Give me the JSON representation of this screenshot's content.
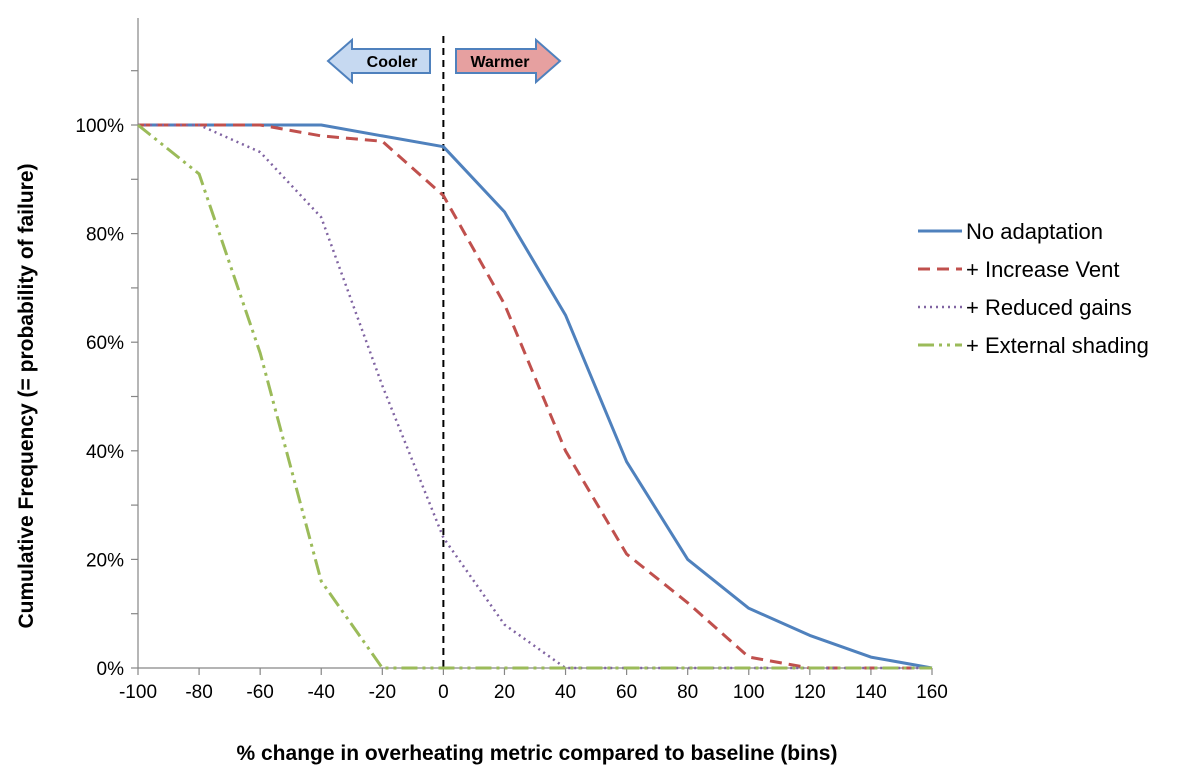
{
  "chart_data": {
    "type": "line",
    "xlabel": "% change in overheating metric compared to baseline (bins)",
    "ylabel": "Cumulative Frequency (= probability of failure)",
    "x": [
      -100,
      -80,
      -60,
      -40,
      -20,
      0,
      20,
      40,
      60,
      80,
      100,
      120,
      140,
      160
    ],
    "xlim": [
      -100,
      160
    ],
    "ylim": [
      0,
      1
    ],
    "x_ticks": [
      "-100",
      "-80",
      "-60",
      "-40",
      "-20",
      "0",
      "20",
      "40",
      "60",
      "80",
      "100",
      "120",
      "140",
      "160"
    ],
    "y_ticks": [
      "0%",
      "20%",
      "40%",
      "60%",
      "80%",
      "100%"
    ],
    "grid": false,
    "legend_position": "right",
    "series": [
      {
        "name": "No adaptation",
        "color": "#4f81bd",
        "style": "solid",
        "values": [
          1.0,
          1.0,
          1.0,
          1.0,
          0.98,
          0.96,
          0.84,
          0.65,
          0.38,
          0.2,
          0.11,
          0.06,
          0.02,
          0.0
        ]
      },
      {
        "name": "+ Increase Vent",
        "color": "#c0504d",
        "style": "dashed",
        "values": [
          1.0,
          1.0,
          1.0,
          0.98,
          0.97,
          0.87,
          0.67,
          0.4,
          0.21,
          0.12,
          0.02,
          0.0,
          0.0,
          0.0
        ]
      },
      {
        "name": "+ Reduced gains",
        "color": "#8064a2",
        "style": "dotted",
        "values": [
          1.0,
          1.0,
          0.95,
          0.83,
          0.52,
          0.24,
          0.08,
          0.0,
          0.0,
          0.0,
          0.0,
          0.0,
          0.0,
          0.0
        ]
      },
      {
        "name": "+ External shading",
        "color": "#9bbb59",
        "style": "dashdotdot",
        "values": [
          1.0,
          0.91,
          0.58,
          0.16,
          0.0,
          0.0,
          0.0,
          0.0,
          0.0,
          0.0,
          0.0,
          0.0,
          0.0,
          0.0
        ]
      }
    ],
    "reference_line": {
      "x": 0,
      "style": "dashed",
      "color": "#000000"
    },
    "annotations": [
      {
        "text": "Cooler",
        "direction": "left",
        "fill": "#c6d9f1",
        "stroke": "#4f81bd"
      },
      {
        "text": "Warmer",
        "direction": "right",
        "fill": "#e6a0a0",
        "stroke": "#4f81bd"
      }
    ]
  }
}
